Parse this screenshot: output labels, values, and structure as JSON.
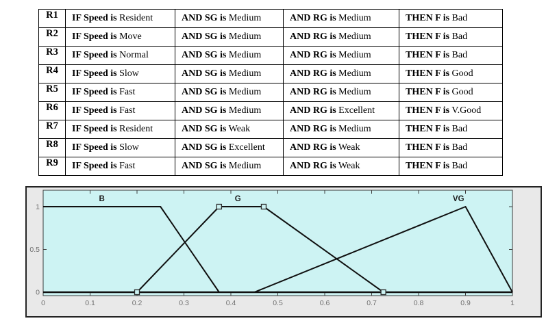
{
  "rules_table": {
    "prefixes": {
      "speed": "IF Speed is",
      "sg": "AND SG is",
      "rg": "AND RG is",
      "f": "THEN F is"
    },
    "rules": [
      {
        "id": "R1",
        "speed": "Resident",
        "sg": "Medium",
        "rg": "Medium",
        "f": "Bad"
      },
      {
        "id": "R2",
        "speed": "Move",
        "sg": "Medium",
        "rg": "Medium",
        "f": "Bad"
      },
      {
        "id": "R3",
        "speed": "Normal",
        "sg": "Medium",
        "rg": "Medium",
        "f": "Bad"
      },
      {
        "id": "R4",
        "speed": "Slow",
        "sg": "Medium",
        "rg": "Medium",
        "f": "Good"
      },
      {
        "id": "R5",
        "speed": "Fast",
        "sg": "Medium",
        "rg": "Medium",
        "f": "Good"
      },
      {
        "id": "R6",
        "speed": "Fast",
        "sg": "Medium",
        "rg": "Excellent",
        "f": "V.Good"
      },
      {
        "id": "R7",
        "speed": "Resident",
        "sg": "Weak",
        "rg": "Medium",
        "f": "Bad"
      },
      {
        "id": "R8",
        "speed": "Slow",
        "sg": "Excellent",
        "rg": "Weak",
        "f": "Bad"
      },
      {
        "id": "R9",
        "speed": "Fast",
        "sg": "Medium",
        "rg": "Weak",
        "f": "Bad"
      }
    ]
  },
  "chart_data": {
    "type": "line",
    "title": "",
    "xlabel": "",
    "ylabel": "",
    "xlim": [
      0,
      1
    ],
    "ylim": [
      -0.04,
      1.19
    ],
    "x_tick_values": [
      0,
      0.1,
      0.2,
      0.3,
      0.4,
      0.5,
      0.6,
      0.7,
      0.8,
      0.9,
      1
    ],
    "x_tick_labels": [
      "0",
      "0.1",
      "0.2",
      "0.3",
      "0.4",
      "0.5",
      "0.6",
      "0.7",
      "0.8",
      "0.9",
      "1"
    ],
    "y_tick_values": [
      0,
      0.5,
      1
    ],
    "y_tick_labels": [
      "0",
      "0.5",
      "1"
    ],
    "grid": false,
    "legend_position": "inline-labels",
    "colors": {
      "plot_bg": "#cdf3f3",
      "figure_bg": "#e9e9e9",
      "axis_edge": "#3c3c3c",
      "line": "#101010",
      "tick_text": "#6f6f6f",
      "marker_edge": "#2a2a2a"
    },
    "baseline": {
      "points": [
        [
          0,
          0
        ],
        [
          1,
          0
        ]
      ]
    },
    "series": [
      {
        "name": "B",
        "points": [
          [
            0,
            1
          ],
          [
            0.25,
            1
          ],
          [
            0.375,
            0
          ]
        ],
        "markers": [],
        "label": "B",
        "label_pos": [
          0.125,
          1.1
        ]
      },
      {
        "name": "G",
        "points": [
          [
            0.2,
            0
          ],
          [
            0.375,
            1
          ],
          [
            0.47,
            1
          ],
          [
            0.725,
            0
          ]
        ],
        "markers": [
          [
            0.2,
            0
          ],
          [
            0.375,
            1
          ],
          [
            0.47,
            1
          ],
          [
            0.725,
            0
          ]
        ],
        "label": "G",
        "label_pos": [
          0.415,
          1.1
        ]
      },
      {
        "name": "VG",
        "points": [
          [
            0.45,
            0
          ],
          [
            0.9,
            1
          ],
          [
            1,
            0
          ]
        ],
        "markers": [],
        "label": "VG",
        "label_pos": [
          0.885,
          1.1
        ]
      }
    ]
  }
}
